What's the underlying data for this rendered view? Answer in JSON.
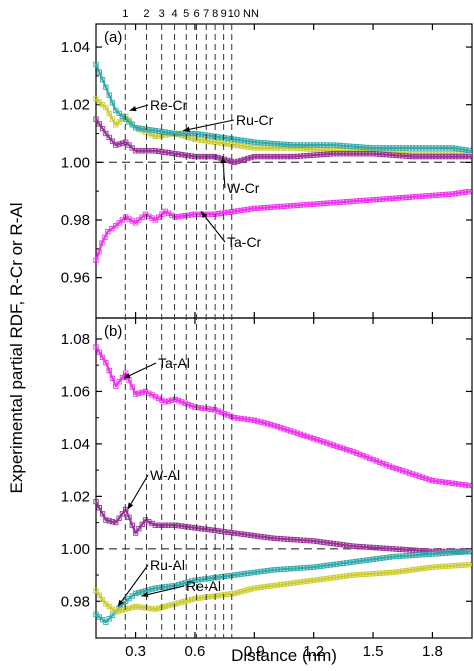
{
  "chart_data": [
    {
      "panel": "(a)",
      "type": "scatter",
      "ylabel": "Experimental partial RDF, R-Cr or R-Al",
      "xlabel": "Distance (nm)",
      "xlim": [
        0.1,
        2.0
      ],
      "ylim": [
        0.946,
        1.048
      ],
      "yticks": [
        0.96,
        0.98,
        1.0,
        1.02,
        1.04
      ],
      "ytick_labels": [
        "0.96",
        "0.98",
        "1.00",
        "1.02",
        "1.04"
      ],
      "reference_line": 1.0,
      "series": [
        {
          "name": "Re-Cr",
          "color": "#cccc33",
          "x": [
            0.1,
            0.15,
            0.2,
            0.25,
            0.3,
            0.4,
            0.5,
            0.6,
            0.7,
            0.8,
            0.9,
            1.1,
            1.3,
            1.5,
            1.7,
            1.9,
            2.0
          ],
          "y": [
            1.022,
            1.019,
            1.013,
            1.016,
            1.012,
            1.009,
            1.01,
            1.008,
            1.007,
            1.006,
            1.005,
            1.005,
            1.004,
            1.004,
            1.003,
            1.003,
            1.003
          ]
        },
        {
          "name": "Ru-Cr",
          "color": "#33aaaa",
          "x": [
            0.1,
            0.15,
            0.2,
            0.25,
            0.3,
            0.4,
            0.5,
            0.6,
            0.7,
            0.8,
            0.9,
            1.1,
            1.3,
            1.5,
            1.7,
            1.9,
            2.0
          ],
          "y": [
            1.034,
            1.026,
            1.018,
            1.015,
            1.012,
            1.011,
            1.01,
            1.01,
            1.009,
            1.008,
            1.007,
            1.006,
            1.006,
            1.005,
            1.005,
            1.005,
            1.004
          ]
        },
        {
          "name": "W-Cr",
          "color": "#993399",
          "x": [
            0.1,
            0.15,
            0.2,
            0.25,
            0.3,
            0.4,
            0.5,
            0.6,
            0.7,
            0.8,
            0.9,
            1.0,
            1.1,
            1.3,
            1.5,
            1.7,
            1.9,
            2.0
          ],
          "y": [
            1.015,
            1.01,
            1.006,
            1.007,
            1.004,
            1.004,
            1.003,
            1.002,
            1.002,
            1.0,
            1.002,
            1.002,
            1.002,
            1.003,
            1.003,
            1.002,
            1.002,
            1.002
          ]
        },
        {
          "name": "Ta-Cr",
          "color": "#ee33ee",
          "x": [
            0.1,
            0.13,
            0.16,
            0.2,
            0.25,
            0.3,
            0.35,
            0.4,
            0.45,
            0.5,
            0.6,
            0.7,
            0.8,
            0.9,
            1.1,
            1.3,
            1.5,
            1.7,
            1.9,
            2.0
          ],
          "y": [
            0.966,
            0.972,
            0.976,
            0.978,
            0.981,
            0.979,
            0.982,
            0.98,
            0.983,
            0.981,
            0.982,
            0.982,
            0.983,
            0.984,
            0.985,
            0.986,
            0.987,
            0.988,
            0.989,
            0.99
          ]
        }
      ],
      "annotations": [
        {
          "text": "(a)"
        },
        {
          "text": "Re-Cr"
        },
        {
          "text": "Ru-Cr"
        },
        {
          "text": "W-Cr"
        },
        {
          "text": "Ta-Cr"
        }
      ]
    },
    {
      "panel": "(b)",
      "type": "scatter",
      "ylabel": "Experimental partial RDF, R-Cr or R-Al",
      "xlabel": "Distance (nm)",
      "xlim": [
        0.1,
        2.0
      ],
      "ylim": [
        0.966,
        1.088
      ],
      "yticks": [
        0.98,
        1.0,
        1.02,
        1.04,
        1.06,
        1.08
      ],
      "ytick_labels": [
        "0.98",
        "1.00",
        "1.02",
        "1.04",
        "1.06",
        "1.08"
      ],
      "xticks": [
        0.3,
        0.6,
        0.9,
        1.2,
        1.5,
        1.8
      ],
      "xtick_labels": [
        "0.3",
        "0.6",
        "0.9",
        "1.2",
        "1.5",
        "1.8"
      ],
      "reference_line": 1.0,
      "series": [
        {
          "name": "Ta-Al",
          "color": "#ee33ee",
          "x": [
            0.1,
            0.15,
            0.2,
            0.25,
            0.3,
            0.35,
            0.4,
            0.45,
            0.5,
            0.6,
            0.7,
            0.8,
            0.9,
            1.0,
            1.2,
            1.4,
            1.6,
            1.8,
            2.0
          ],
          "y": [
            1.077,
            1.071,
            1.062,
            1.067,
            1.059,
            1.06,
            1.058,
            1.056,
            1.057,
            1.054,
            1.053,
            1.05,
            1.049,
            1.047,
            1.042,
            1.037,
            1.031,
            1.026,
            1.024
          ]
        },
        {
          "name": "W-Al",
          "color": "#993399",
          "x": [
            0.1,
            0.15,
            0.2,
            0.25,
            0.3,
            0.35,
            0.4,
            0.5,
            0.6,
            0.7,
            0.8,
            0.9,
            1.0,
            1.2,
            1.4,
            1.6,
            1.8,
            2.0
          ],
          "y": [
            1.018,
            1.011,
            1.01,
            1.015,
            1.006,
            1.011,
            1.009,
            1.009,
            1.008,
            1.007,
            1.006,
            1.005,
            1.004,
            1.003,
            1.001,
            1.0,
            0.999,
            0.999
          ]
        },
        {
          "name": "Ru-Al",
          "color": "#33aaaa",
          "x": [
            0.1,
            0.15,
            0.2,
            0.25,
            0.3,
            0.4,
            0.5,
            0.6,
            0.7,
            0.8,
            0.9,
            1.0,
            1.2,
            1.4,
            1.6,
            1.8,
            2.0
          ],
          "y": [
            0.975,
            0.972,
            0.976,
            0.98,
            0.983,
            0.985,
            0.986,
            0.988,
            0.989,
            0.99,
            0.991,
            0.992,
            0.993,
            0.995,
            0.997,
            0.998,
            0.999
          ]
        },
        {
          "name": "Re-Al",
          "color": "#cccc33",
          "x": [
            0.1,
            0.15,
            0.2,
            0.25,
            0.3,
            0.4,
            0.5,
            0.6,
            0.7,
            0.8,
            0.9,
            1.0,
            1.2,
            1.4,
            1.6,
            1.8,
            2.0
          ],
          "y": [
            0.984,
            0.979,
            0.976,
            0.977,
            0.978,
            0.977,
            0.979,
            0.981,
            0.982,
            0.983,
            0.985,
            0.986,
            0.988,
            0.99,
            0.991,
            0.993,
            0.994
          ]
        }
      ],
      "annotations": [
        {
          "text": "(b)"
        },
        {
          "text": "Ta-Al"
        },
        {
          "text": "W-Al"
        },
        {
          "text": "Ru-Al"
        },
        {
          "text": "Re-Al"
        }
      ]
    }
  ],
  "neighbor_shells": {
    "labels": [
      "1",
      "2",
      "3",
      "4",
      "5",
      "6",
      "7",
      "8",
      "9",
      "10 NN"
    ],
    "distances": [
      0.248,
      0.355,
      0.432,
      0.497,
      0.556,
      0.608,
      0.657,
      0.702,
      0.745,
      0.786
    ]
  },
  "axes": {
    "ylabel": "Experimental partial RDF, R-Cr or R-Al",
    "xlabel": "Distance (nm)"
  }
}
